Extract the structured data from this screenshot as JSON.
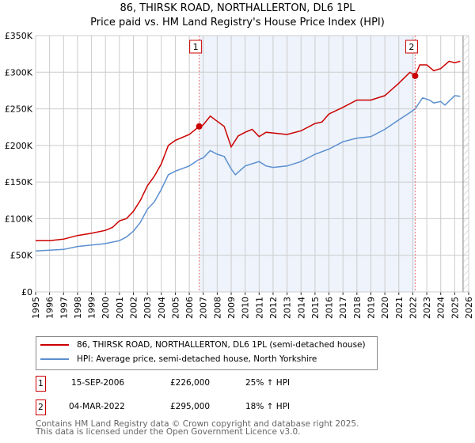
{
  "chart_data": {
    "type": "line",
    "title": "86, THIRSK ROAD, NORTHALLERTON, DL6 1PL",
    "subtitle": "Price paid vs. HM Land Registry's House Price Index (HPI)",
    "xlim": [
      1995,
      2026
    ],
    "ylim": [
      0,
      350000
    ],
    "x_ticks": [
      "1995",
      "1996",
      "1997",
      "1998",
      "1999",
      "2000",
      "2001",
      "2002",
      "2003",
      "2004",
      "2005",
      "2006",
      "2007",
      "2008",
      "2009",
      "2010",
      "2011",
      "2012",
      "2013",
      "2014",
      "2015",
      "2016",
      "2017",
      "2018",
      "2019",
      "2020",
      "2021",
      "2022",
      "2023",
      "2024",
      "2025",
      "2026"
    ],
    "y_ticks": [
      {
        "v": 0,
        "label": "£0"
      },
      {
        "v": 50000,
        "label": "£50K"
      },
      {
        "v": 100000,
        "label": "£100K"
      },
      {
        "v": 150000,
        "label": "£150K"
      },
      {
        "v": 200000,
        "label": "£200K"
      },
      {
        "v": 250000,
        "label": "£250K"
      },
      {
        "v": 300000,
        "label": "£300K"
      },
      {
        "v": 350000,
        "label": "£350K"
      }
    ],
    "grid": true,
    "shaded_range": [
      2006.71,
      2022.17
    ],
    "hatched_from": 2025.6,
    "series": [
      {
        "name": "86, THIRSK ROAD, NORTHALLERTON, DL6 1PL (semi-detached house)",
        "color": "#cc0000",
        "x": [
          1995,
          1996,
          1997,
          1998,
          1999,
          2000,
          2000.5,
          2001,
          2001.5,
          2002,
          2002.5,
          2003,
          2003.5,
          2004,
          2004.5,
          2005,
          2006,
          2006.71,
          2007,
          2007.5,
          2008,
          2008.5,
          2009,
          2009.5,
          2010,
          2010.5,
          2011,
          2011.5,
          2012,
          2013,
          2014,
          2015,
          2015.5,
          2016,
          2017,
          2018,
          2019,
          2020,
          2021,
          2021.8,
          2022.17,
          2022.5,
          2023,
          2023.5,
          2024,
          2024.6,
          2025,
          2025.4
        ],
        "y": [
          70000,
          70000,
          72000,
          77000,
          80000,
          84000,
          88000,
          97000,
          100000,
          110000,
          125000,
          145000,
          158000,
          175000,
          200000,
          207000,
          215000,
          226000,
          228000,
          240000,
          233000,
          226000,
          198000,
          213000,
          218000,
          222000,
          212000,
          218000,
          217000,
          215000,
          220000,
          230000,
          232000,
          243000,
          252000,
          262000,
          262000,
          268000,
          285000,
          300000,
          295000,
          310000,
          310000,
          302000,
          305000,
          315000,
          313000,
          315000
        ]
      },
      {
        "name": "HPI: Average price, semi-detached house, North Yorkshire",
        "color": "#5b8fd0",
        "x": [
          1995,
          1996,
          1997,
          1998,
          1999,
          2000,
          2001,
          2001.5,
          2002,
          2002.5,
          2003,
          2003.5,
          2004,
          2004.5,
          2005,
          2006,
          2006.71,
          2007,
          2007.5,
          2008,
          2008.5,
          2009,
          2009.3,
          2010,
          2011,
          2011.5,
          2012,
          2013,
          2014,
          2015,
          2016,
          2017,
          2018,
          2019,
          2020,
          2021,
          2021.8,
          2022.17,
          2022.7,
          2023.2,
          2023.5,
          2024,
          2024.3,
          2025,
          2025.4
        ],
        "y": [
          56000,
          57000,
          58000,
          62000,
          64000,
          66000,
          70000,
          75000,
          83000,
          95000,
          113000,
          123000,
          140000,
          160000,
          165000,
          172000,
          181000,
          183000,
          193000,
          188000,
          185000,
          168000,
          160000,
          172000,
          178000,
          172000,
          170000,
          172000,
          178000,
          188000,
          195000,
          205000,
          210000,
          212000,
          222000,
          235000,
          245000,
          250000,
          265000,
          262000,
          258000,
          260000,
          255000,
          268000,
          267000
        ]
      }
    ],
    "sales": [
      {
        "id": "1",
        "x": 2006.71,
        "y": 226000,
        "date": "15-SEP-2006",
        "price": "£226,000",
        "hpi": "25% ↑ HPI"
      },
      {
        "id": "2",
        "x": 2022.17,
        "y": 295000,
        "date": "04-MAR-2022",
        "price": "£295,000",
        "hpi": "18% ↑ HPI"
      }
    ]
  },
  "footer": {
    "line1": "Contains HM Land Registry data © Crown copyright and database right 2025.",
    "line2": "This data is licensed under the Open Government Licence v3.0."
  }
}
